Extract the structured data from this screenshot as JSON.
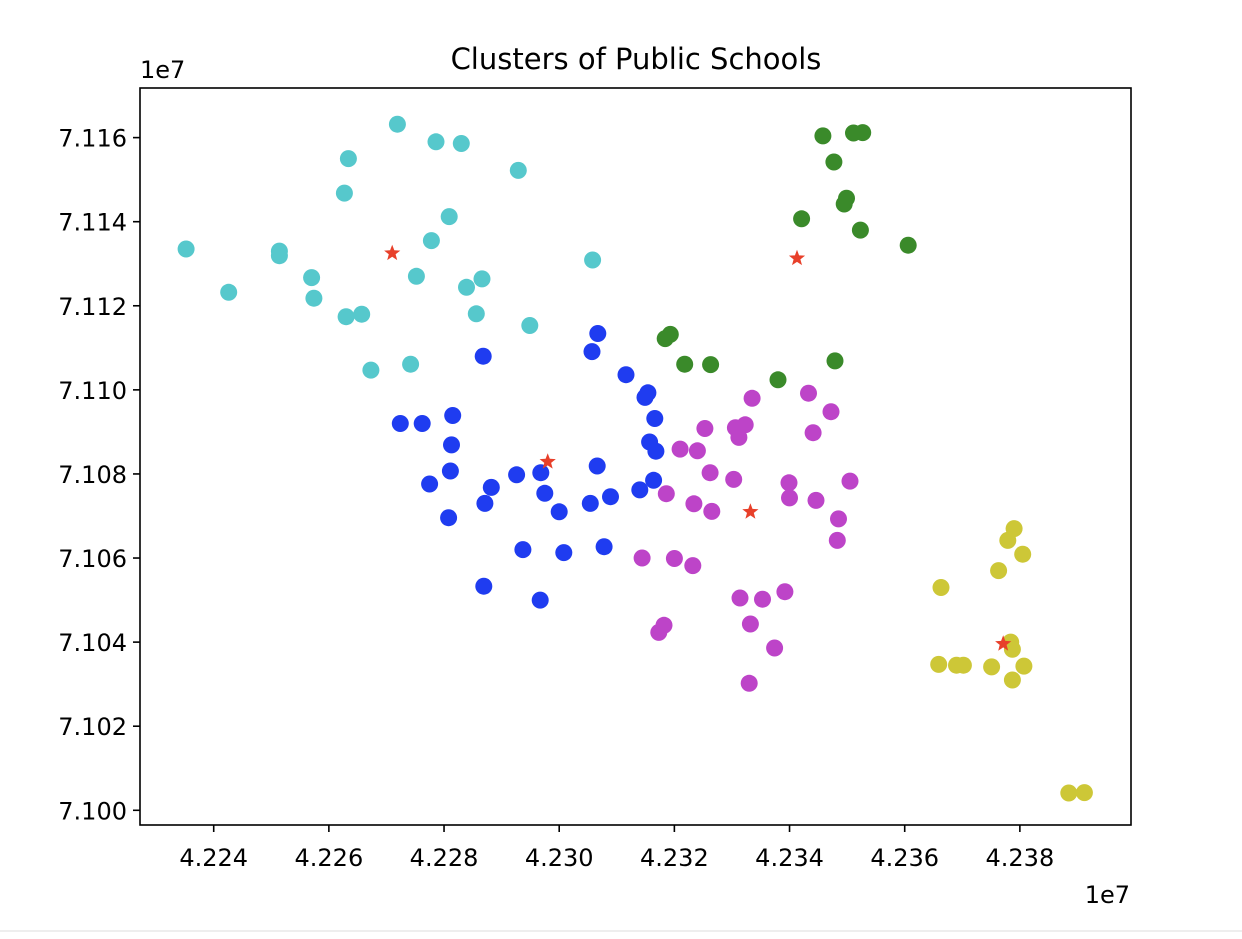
{
  "chart_data": {
    "type": "scatter",
    "title": "Clusters of Public Schools",
    "xlabel": "",
    "ylabel": "",
    "x_offset_label": "1e7",
    "y_offset_label": "1e7",
    "xlim": [
      4.22272,
      4.23993
    ],
    "ylim": [
      7.09965,
      7.11718
    ],
    "xticks": [
      4.224,
      4.226,
      4.228,
      4.23,
      4.232,
      4.234,
      4.236,
      4.238
    ],
    "xtick_labels": [
      "4.224",
      "4.226",
      "4.228",
      "4.230",
      "4.232",
      "4.234",
      "4.236",
      "4.238"
    ],
    "yticks": [
      7.1,
      7.102,
      7.104,
      7.106,
      7.108,
      7.11,
      7.112,
      7.114,
      7.116
    ],
    "ytick_labels": [
      "7.100",
      "7.102",
      "7.104",
      "7.106",
      "7.108",
      "7.110",
      "7.112",
      "7.114",
      "7.116"
    ],
    "grid": false,
    "legend": "none",
    "series": [
      {
        "color": "#56c8cc",
        "x": [
          4.22352,
          4.22426,
          4.22514,
          4.22514,
          4.2257,
          4.22574,
          4.22627,
          4.22634,
          4.2263,
          4.22657,
          4.22673,
          4.22719,
          4.22742,
          4.22752,
          4.22778,
          4.22786,
          4.22809,
          4.2283,
          4.22839,
          4.22856,
          4.22866,
          4.22929,
          4.22949,
          4.23058
        ],
        "y": [
          7.11335,
          7.11232,
          7.1133,
          7.11319,
          7.11267,
          7.11218,
          7.11468,
          7.1155,
          7.11174,
          7.1118,
          7.11047,
          7.11632,
          7.11061,
          7.1127,
          7.11355,
          7.1159,
          7.11412,
          7.11586,
          7.11244,
          7.11181,
          7.11264,
          7.11522,
          7.11153,
          7.11309
        ]
      },
      {
        "color": "#3a8a2a",
        "x": [
          4.23184,
          4.23193,
          4.23218,
          4.23263,
          4.2338,
          4.23421,
          4.23458,
          4.23477,
          4.23479,
          4.23495,
          4.23499,
          4.23511,
          4.23523,
          4.23527,
          4.23606
        ],
        "y": [
          7.11122,
          7.11132,
          7.11061,
          7.1106,
          7.11024,
          7.11407,
          7.11604,
          7.11542,
          7.11069,
          7.11442,
          7.11456,
          7.11611,
          7.1138,
          7.11612,
          7.11344
        ]
      },
      {
        "color": "#1f3cf0",
        "x": [
          4.22724,
          4.22762,
          4.22775,
          4.22808,
          4.22811,
          4.22813,
          4.22815,
          4.22868,
          4.22869,
          4.22871,
          4.22882,
          4.22926,
          4.22937,
          4.22967,
          4.22968,
          4.22975,
          4.23,
          4.23008,
          4.23054,
          4.23057,
          4.23066,
          4.23067,
          4.23078,
          4.23089,
          4.23116,
          4.2314,
          4.23149,
          4.23154,
          4.23157,
          4.23164,
          4.23166,
          4.23168
        ],
        "y": [
          7.1092,
          7.1092,
          7.10776,
          7.10696,
          7.10807,
          7.10869,
          7.10939,
          7.1108,
          7.10533,
          7.1073,
          7.10768,
          7.10798,
          7.1062,
          7.105,
          7.10803,
          7.10754,
          7.1071,
          7.10613,
          7.1073,
          7.11091,
          7.10819,
          7.11134,
          7.10627,
          7.10746,
          7.11036,
          7.10762,
          7.10982,
          7.10993,
          7.10876,
          7.10785,
          7.10932,
          7.10854
        ]
      },
      {
        "color": "#bd44c8",
        "x": [
          4.23144,
          4.23173,
          4.23182,
          4.23186,
          4.232,
          4.2321,
          4.23232,
          4.23234,
          4.2324,
          4.23253,
          4.23262,
          4.23265,
          4.23303,
          4.23306,
          4.23312,
          4.23314,
          4.23323,
          4.2333,
          4.23332,
          4.23335,
          4.23353,
          4.23374,
          4.23392,
          4.23399,
          4.234,
          4.23433,
          4.23441,
          4.23446,
          4.23472,
          4.23483,
          4.23485,
          4.23505
        ],
        "y": [
          7.106,
          7.10423,
          7.1044,
          7.10753,
          7.10599,
          7.10859,
          7.10582,
          7.10729,
          7.10855,
          7.10908,
          7.10803,
          7.10711,
          7.10787,
          7.1091,
          7.10887,
          7.10505,
          7.10917,
          7.10302,
          7.10443,
          7.1098,
          7.10502,
          7.10386,
          7.1052,
          7.10779,
          7.10743,
          7.10992,
          7.10898,
          7.10737,
          7.10948,
          7.10642,
          7.10693,
          7.10783
        ]
      },
      {
        "color": "#cdc737",
        "x": [
          4.23659,
          4.23663,
          4.2369,
          4.23702,
          4.23751,
          4.23763,
          4.23779,
          4.23784,
          4.23787,
          4.23787,
          4.2379,
          4.23805,
          4.23807,
          4.23885,
          4.23912
        ],
        "y": [
          7.10347,
          7.1053,
          7.10345,
          7.10345,
          7.10341,
          7.1057,
          7.10642,
          7.104,
          7.1031,
          7.10383,
          7.1067,
          7.10609,
          7.10343,
          7.10041,
          7.10042
        ]
      }
    ],
    "centroids": {
      "color": "#e8402a",
      "marker": "star",
      "x": [
        4.2271,
        4.2298,
        4.23332,
        4.23413,
        4.23771
      ],
      "y": [
        7.11325,
        7.10829,
        7.1071,
        7.11313,
        7.10396
      ]
    }
  }
}
